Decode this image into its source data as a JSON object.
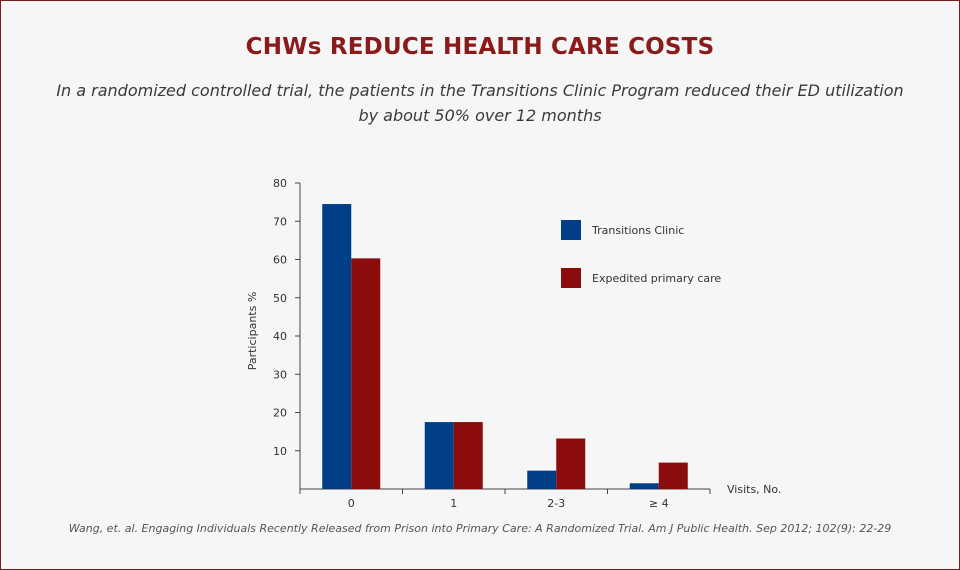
{
  "chart_data": {
    "type": "bar",
    "title": "CHWs REDUCE HEALTH CARE COSTS",
    "subtitle": "In a randomized controlled trial, the patients in the Transitions Clinic Program reduced their ED utilization by about 50% over 12 months",
    "categories": [
      "0",
      "1",
      "2-3",
      "≥ 4"
    ],
    "series": [
      {
        "name": "Transitions Clinic",
        "color": "#003f87",
        "values": [
          74.5,
          17.5,
          4.8,
          1.5
        ]
      },
      {
        "name": "Expedited primary care",
        "color": "#8b0c0c",
        "values": [
          60.3,
          17.5,
          13.2,
          6.9
        ]
      }
    ],
    "xlabel": "Visits, No.",
    "ylabel": "Participants %",
    "yticks": [
      10,
      20,
      30,
      40,
      50,
      60,
      70,
      80
    ],
    "ylim": [
      0,
      80
    ],
    "legend_position": "top-right",
    "grid": false,
    "source": "Wang, et. al. Engaging Individuals Recently Released from Prison into Primary Care: A Randomized Trial. Am J Public Health. Sep 2012; 102(9): 22-29"
  },
  "colors": {
    "title": "#8b1a1a",
    "border": "#7a1a1a",
    "background": "#f6f6f6"
  }
}
